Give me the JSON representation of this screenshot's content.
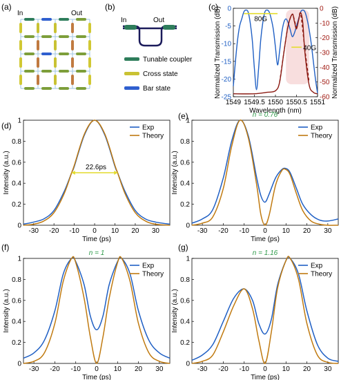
{
  "panel_labels": {
    "a": "(a)",
    "b": "(b)",
    "c": "(c)",
    "d": "(d)",
    "e": "(e)",
    "f": "(f)",
    "g": "(g)"
  },
  "colors": {
    "blue": "#1f5fc4",
    "orange": "#c07a10",
    "green": "#2e9a4a",
    "yellow": "#e3dc2a",
    "dark_red": "#8b1a12",
    "cross": "#7d9e3a",
    "bar_state": "#2f5fcf",
    "tunable": "#2e7d5b"
  },
  "mesh": {
    "in_label": "In",
    "out_label": "Out"
  },
  "legend_b": {
    "in_label": "In",
    "out_label": "Out",
    "items": [
      {
        "label": "Tunable coupler",
        "color": "#2e7d5b"
      },
      {
        "label": "Cross state",
        "color": "#c9c233"
      },
      {
        "label": "Bar state",
        "color": "#2f5fcf"
      }
    ]
  },
  "chart_data": [
    {
      "panel": "(c)",
      "type": "line",
      "xlabel": "Wavelength (nm)",
      "ylabel_left": "Normalized Transmission (dB)",
      "ylabel_right": "Normalized Transmission (dB)",
      "xlim": [
        1549,
        1551
      ],
      "ylim_left": [
        -25,
        0
      ],
      "ylim_right": [
        -60,
        0
      ],
      "xticks": [
        "1549",
        "1549.5",
        "1550",
        "1550.5",
        "1551"
      ],
      "yticks_left": [
        "0",
        "-5",
        "-10",
        "-15",
        "-20",
        "-25"
      ],
      "yticks_right": [
        "0",
        "-10",
        "-20",
        "-30",
        "-40",
        "-50",
        "-60"
      ],
      "annotations": [
        "80G",
        "40G"
      ],
      "series": [
        {
          "color": "#1f5fc4",
          "axis": "left",
          "x": [
            1549,
            1549.05,
            1549.1,
            1549.15,
            1549.2,
            1549.25,
            1549.3,
            1549.35,
            1549.4,
            1549.45,
            1549.5,
            1549.55,
            1549.6,
            1549.65,
            1549.7,
            1549.75,
            1549.8,
            1549.85,
            1549.9,
            1549.95,
            1550,
            1550.05,
            1550.1,
            1550.15,
            1550.2,
            1550.25,
            1550.3,
            1550.35,
            1550.4,
            1550.45,
            1550.5,
            1550.55,
            1550.6,
            1550.65,
            1550.7,
            1550.75,
            1550.8,
            1550.85,
            1550.9,
            1550.95,
            1551
          ],
          "y": [
            -22,
            -15,
            -9,
            -5,
            -3,
            -1,
            -0.5,
            -1,
            -4,
            -9,
            -17,
            -23,
            -17,
            -9,
            -4,
            -1,
            -0.5,
            -1,
            -3,
            -6,
            -11,
            -16,
            -12,
            -7,
            -4,
            -3,
            -4,
            -6,
            -8,
            -7,
            -5,
            -3,
            -1,
            -0.5,
            -1,
            -3,
            -6,
            -10,
            -15,
            -20,
            -24
          ]
        },
        {
          "color": "#8b1a12",
          "axis": "right",
          "x": [
            1549,
            1549.5,
            1549.8,
            1550,
            1550.1,
            1550.2,
            1550.3,
            1550.4,
            1550.45,
            1550.5,
            1550.55,
            1550.6,
            1550.65,
            1550.7,
            1550.8,
            1550.9,
            1551
          ],
          "y": [
            -58,
            -58,
            -57,
            -56,
            -50,
            -30,
            -12,
            -4,
            -9,
            -14,
            -8,
            -3,
            -10,
            -30,
            -52,
            -57,
            -58
          ]
        },
        {
          "color": "#8b1a12",
          "axis": "right",
          "style": "dashed",
          "x": [
            1550.1,
            1550.2,
            1550.3,
            1550.4,
            1550.45,
            1550.5,
            1550.55,
            1550.6,
            1550.7,
            1550.8
          ],
          "y": [
            -50,
            -30,
            -12,
            -4,
            -8,
            -13,
            -8,
            -4,
            -28,
            -50
          ]
        }
      ]
    },
    {
      "panel": "(d)",
      "type": "line",
      "xlabel": "Time (ps)",
      "ylabel": "Intensity (a.u.)",
      "xlim": [
        -35,
        37
      ],
      "ylim": [
        0,
        1
      ],
      "xticks": [
        "-30",
        "-20",
        "-10",
        "0",
        "10",
        "20",
        "30"
      ],
      "yticks": [
        "0",
        "0.2",
        "0.4",
        "0.6",
        "0.8",
        "1"
      ],
      "annotation": "22.6ps",
      "series": [
        {
          "name": "Exp",
          "color": "#1f5fc4",
          "x": [
            -35,
            -30,
            -25,
            -20,
            -15,
            -11.3,
            -10,
            -5,
            0,
            5,
            10,
            11.3,
            15,
            20,
            25,
            30,
            37
          ],
          "y": [
            0.01,
            0.03,
            0.06,
            0.14,
            0.32,
            0.5,
            0.56,
            0.86,
            1,
            0.86,
            0.56,
            0.5,
            0.32,
            0.14,
            0.06,
            0.03,
            0.01
          ]
        },
        {
          "name": "Theory",
          "color": "#c07a10",
          "x": [
            -35,
            -30,
            -25,
            -20,
            -15,
            -11.3,
            -10,
            -5,
            0,
            5,
            10,
            11.3,
            15,
            20,
            25,
            30,
            37
          ],
          "y": [
            0,
            0.01,
            0.04,
            0.12,
            0.3,
            0.5,
            0.57,
            0.87,
            1,
            0.87,
            0.57,
            0.5,
            0.3,
            0.12,
            0.04,
            0.01,
            0
          ]
        }
      ]
    },
    {
      "panel": "(e)",
      "type": "line",
      "title": "n = 0.76",
      "xlabel": "Time (ps)",
      "ylabel": "Intensity (a.u.)",
      "xlim": [
        -35,
        35
      ],
      "ylim": [
        0,
        1
      ],
      "xticks": [
        "-30",
        "-20",
        "-10",
        "0",
        "10",
        "20",
        "30"
      ],
      "yticks": [
        "0",
        "0.2",
        "0.4",
        "0.6",
        "0.8",
        "1"
      ],
      "series": [
        {
          "name": "Exp",
          "color": "#1f5fc4",
          "x": [
            -35,
            -30,
            -25,
            -20,
            -16,
            -12,
            -8,
            -4,
            -2,
            0,
            2,
            5,
            8,
            10,
            12,
            15,
            18,
            22,
            26,
            30,
            35
          ],
          "y": [
            0.02,
            0.06,
            0.15,
            0.45,
            0.8,
            1,
            0.85,
            0.45,
            0.28,
            0.22,
            0.3,
            0.45,
            0.53,
            0.54,
            0.5,
            0.35,
            0.2,
            0.1,
            0.05,
            0.04,
            0.06
          ]
        },
        {
          "name": "Theory",
          "color": "#c07a10",
          "x": [
            -35,
            -30,
            -25,
            -20,
            -16,
            -12,
            -8,
            -4,
            -2,
            0,
            2,
            5,
            8,
            10,
            12,
            15,
            18,
            22,
            26,
            30,
            35
          ],
          "y": [
            0,
            0.02,
            0.08,
            0.35,
            0.75,
            1,
            0.83,
            0.38,
            0.1,
            0,
            0.1,
            0.38,
            0.52,
            0.53,
            0.48,
            0.3,
            0.14,
            0.04,
            0.01,
            0,
            0
          ]
        }
      ]
    },
    {
      "panel": "(f)",
      "type": "line",
      "title": "n = 1",
      "xlabel": "Time (ps)",
      "ylabel": "Intensity (a.u.)",
      "xlim": [
        -35,
        35
      ],
      "ylim": [
        0,
        1
      ],
      "xticks": [
        "-30",
        "-20",
        "-10",
        "0",
        "10",
        "20",
        "30"
      ],
      "yticks": [
        "0",
        "0.2",
        "0.4",
        "0.6",
        "0.8",
        "1"
      ],
      "series": [
        {
          "name": "Exp",
          "color": "#1f5fc4",
          "x": [
            -35,
            -30,
            -25,
            -20,
            -16,
            -12,
            -10,
            -6,
            -3,
            0,
            3,
            6,
            10,
            12,
            16,
            20,
            25,
            30,
            35
          ],
          "y": [
            0.05,
            0.1,
            0.22,
            0.5,
            0.85,
            1,
            0.97,
            0.75,
            0.45,
            0.32,
            0.45,
            0.75,
            0.97,
            1,
            0.85,
            0.5,
            0.22,
            0.1,
            0.05
          ]
        },
        {
          "name": "Theory",
          "color": "#c07a10",
          "x": [
            -35,
            -30,
            -25,
            -20,
            -16,
            -12,
            -10,
            -6,
            -3,
            0,
            3,
            6,
            10,
            12,
            16,
            20,
            25,
            30,
            35
          ],
          "y": [
            0,
            0.02,
            0.1,
            0.38,
            0.78,
            1,
            0.96,
            0.62,
            0.25,
            0,
            0.25,
            0.62,
            0.96,
            1,
            0.78,
            0.38,
            0.1,
            0.02,
            0
          ]
        }
      ]
    },
    {
      "panel": "(g)",
      "type": "line",
      "title": "n = 1.16",
      "xlabel": "Time (ps)",
      "ylabel": "Intensity (a.u.)",
      "xlim": [
        -35,
        35
      ],
      "ylim": [
        0,
        1
      ],
      "xticks": [
        "-30",
        "-20",
        "-10",
        "0",
        "10",
        "20",
        "30"
      ],
      "yticks": [
        "0",
        "0.2",
        "0.4",
        "0.6",
        "0.8",
        "1"
      ],
      "series": [
        {
          "name": "Exp",
          "color": "#1f5fc4",
          "x": [
            -35,
            -30,
            -25,
            -20,
            -15,
            -10,
            -6,
            -3,
            0,
            3,
            6,
            10,
            12,
            16,
            20,
            25,
            30,
            35
          ],
          "y": [
            0.03,
            0.08,
            0.18,
            0.4,
            0.62,
            0.71,
            0.6,
            0.38,
            0.28,
            0.42,
            0.75,
            0.98,
            1,
            0.85,
            0.5,
            0.18,
            0.05,
            0.02
          ]
        },
        {
          "name": "Theory",
          "color": "#c07a10",
          "x": [
            -35,
            -30,
            -25,
            -20,
            -15,
            -10,
            -6,
            -3,
            0,
            3,
            6,
            10,
            12,
            16,
            20,
            25,
            30,
            35
          ],
          "y": [
            0,
            0.02,
            0.08,
            0.3,
            0.55,
            0.71,
            0.52,
            0.22,
            0,
            0.3,
            0.72,
            0.98,
            1,
            0.8,
            0.38,
            0.08,
            0.01,
            0
          ]
        }
      ]
    }
  ]
}
